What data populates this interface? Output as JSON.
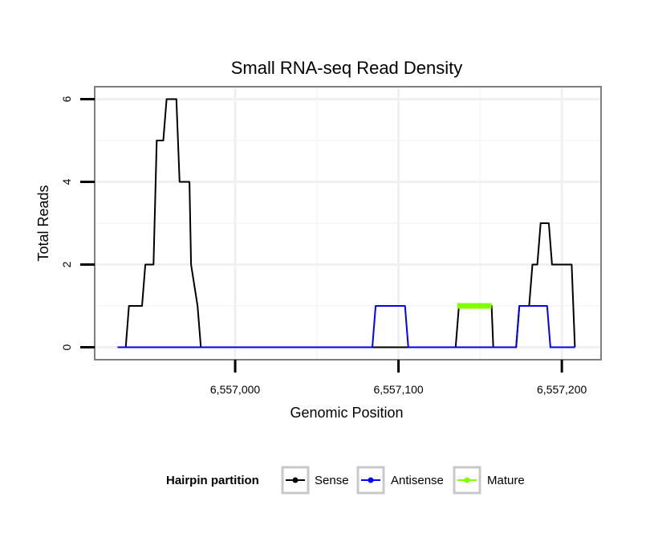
{
  "chart_data": {
    "type": "line",
    "title": "Small RNA-seq Read Density",
    "xlabel": "Genomic Position",
    "ylabel": "Total Reads",
    "xlim": [
      6556914,
      6557224
    ],
    "ylim": [
      -0.3,
      6.3
    ],
    "x_ticks": [
      6557000,
      6557100,
      6557200
    ],
    "x_tick_labels": [
      "6,557,000",
      "6,557,100",
      "6,557,200"
    ],
    "y_ticks": [
      0,
      2,
      4,
      6
    ],
    "y_tick_labels": [
      "0",
      "2",
      "4",
      "6"
    ],
    "grid": true,
    "legend": {
      "title": "Hairpin partition",
      "placement": "bottom",
      "entries": [
        "Sense",
        "Antisense",
        "Mature"
      ]
    },
    "series": [
      {
        "name": "Sense",
        "color": "#000000",
        "x": [
          6556928,
          6556933,
          6556935,
          6556943,
          6556945,
          6556950,
          6556952,
          6556956,
          6556958,
          6556964,
          6556966,
          6556972,
          6556973,
          6556977,
          6556979,
          6557135,
          6557137,
          6557157,
          6557158,
          6557172,
          6557174,
          6557180,
          6557182,
          6557185,
          6557187,
          6557192,
          6557194,
          6557206,
          6557208
        ],
        "y": [
          0,
          0,
          1,
          1,
          2,
          2,
          5,
          5,
          6,
          6,
          4,
          4,
          2,
          1,
          0,
          0,
          1,
          1,
          0,
          0,
          1,
          1,
          2,
          2,
          3,
          3,
          2,
          2,
          0
        ]
      },
      {
        "name": "Antisense",
        "color": "#0000ff",
        "x": [
          6556928,
          6557084,
          6557086,
          6557104,
          6557106,
          6557135,
          6557137,
          6557157,
          6557159,
          6557172,
          6557174,
          6557191,
          6557193,
          6557208
        ],
        "y": [
          0,
          0,
          1,
          1,
          0,
          0,
          0,
          0,
          0,
          0,
          1,
          1,
          0,
          0
        ]
      },
      {
        "name": "Mature",
        "color": "#7fff00",
        "x": [
          6557136,
          6557157
        ],
        "y": [
          1,
          1
        ]
      }
    ]
  }
}
